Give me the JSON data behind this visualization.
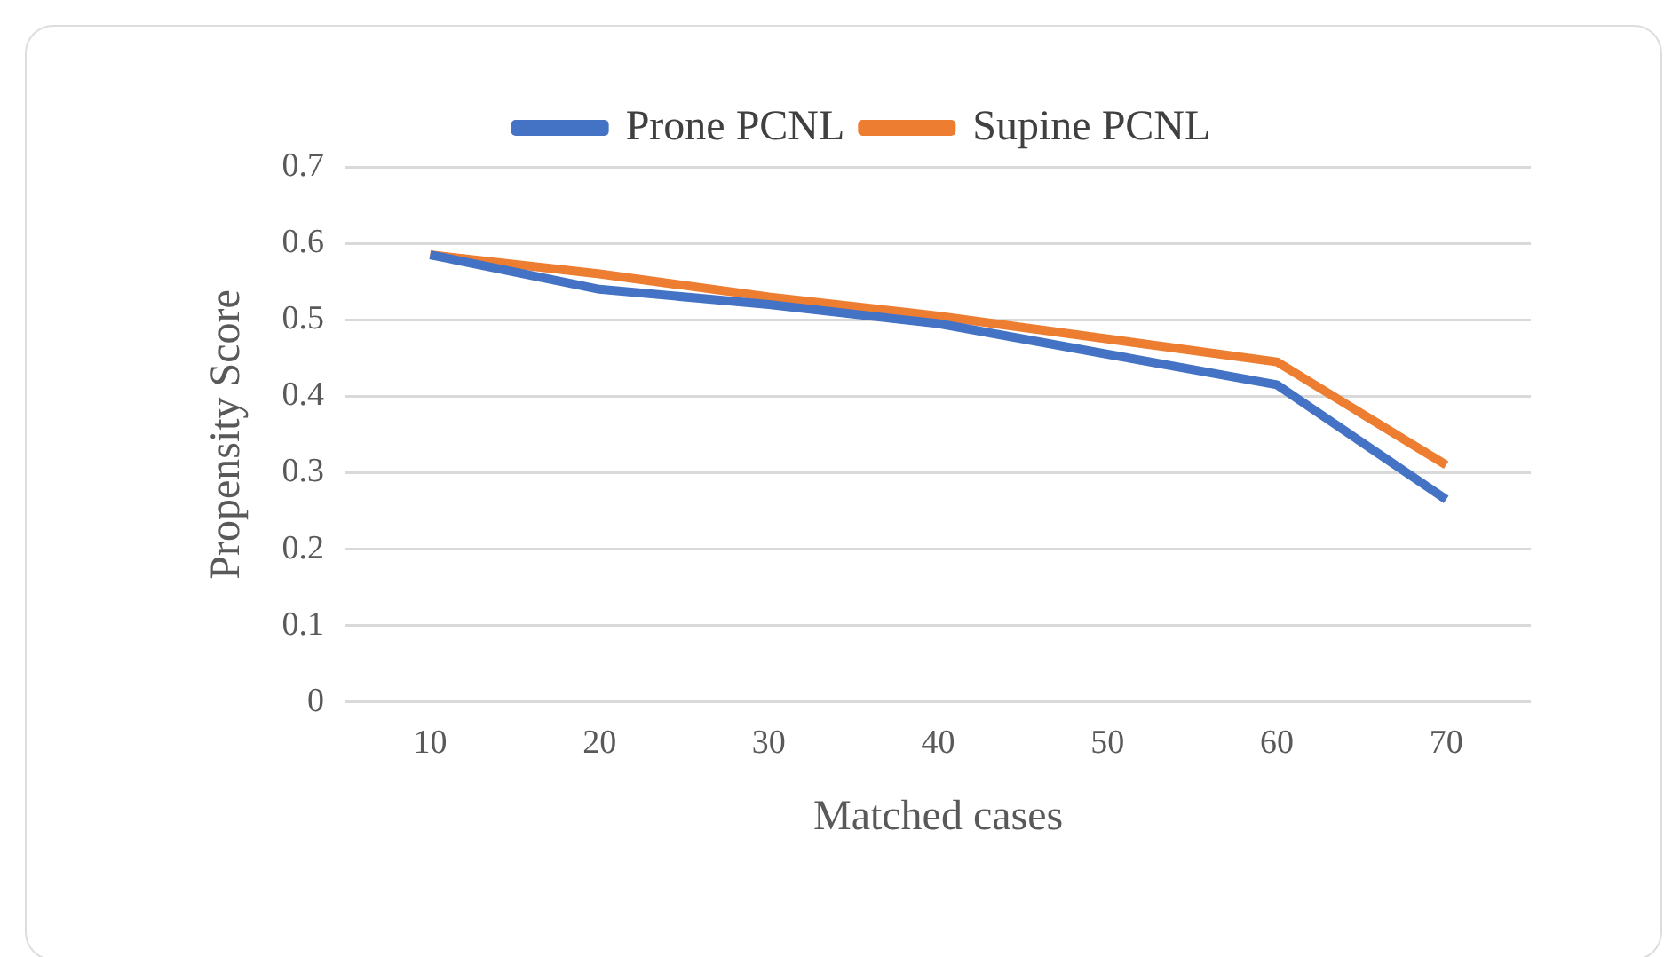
{
  "chart_data": {
    "type": "line",
    "xlabel": "Matched cases",
    "ylabel": "Propensity Score",
    "categories": [
      "10",
      "20",
      "30",
      "40",
      "50",
      "60",
      "70"
    ],
    "series": [
      {
        "name": "Prone PCNL",
        "color": "#4472c4",
        "values": [
          0.585,
          0.54,
          0.52,
          0.495,
          0.455,
          0.415,
          0.265
        ]
      },
      {
        "name": "Supine PCNL",
        "color": "#ed7d31",
        "values": [
          0.585,
          0.56,
          0.53,
          0.505,
          0.475,
          0.445,
          0.31
        ]
      }
    ],
    "ylim": [
      0,
      0.7
    ],
    "yticks": [
      0,
      0.1,
      0.2,
      0.3,
      0.4,
      0.5,
      0.6,
      0.7
    ],
    "grid": "y",
    "legend": "top",
    "marker": "none",
    "line_style": "solid"
  }
}
